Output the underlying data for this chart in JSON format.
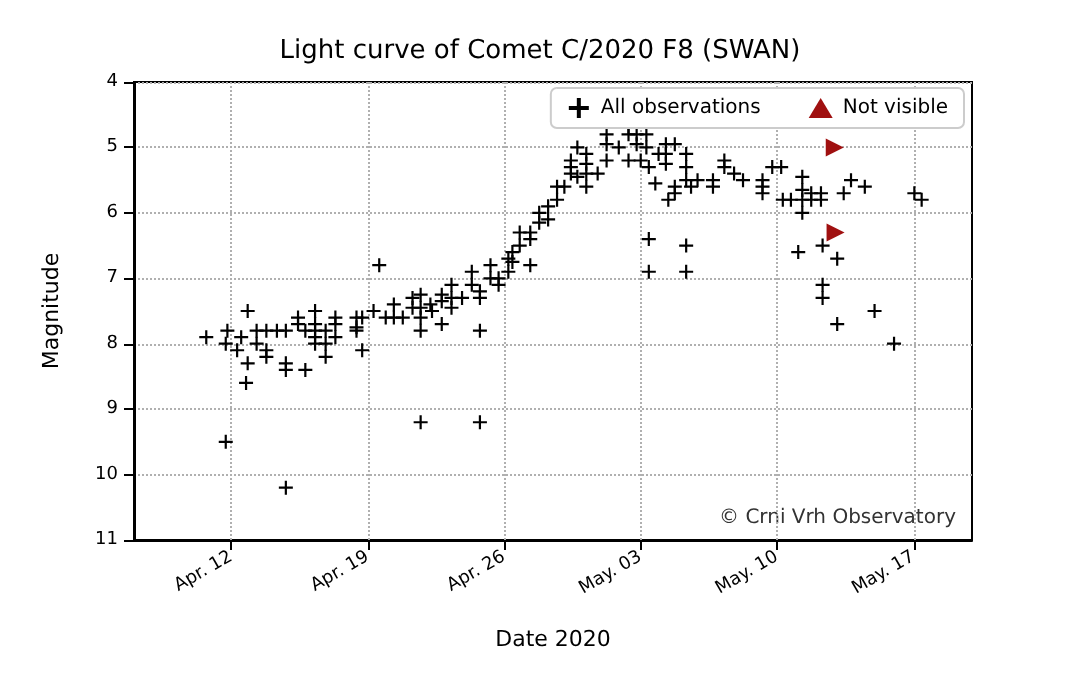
{
  "chart_data": {
    "type": "scatter",
    "title": "Light curve of Comet C/2020 F8 (SWAN)",
    "xlabel": "Date 2020",
    "ylabel": "Magnitude",
    "xlim": [
      "2020-04-07",
      "2020-05-20"
    ],
    "xticks": [
      {
        "value": "2020-04-12",
        "label": "Apr. 12"
      },
      {
        "value": "2020-04-19",
        "label": "Apr. 19"
      },
      {
        "value": "2020-04-26",
        "label": "Apr. 26"
      },
      {
        "value": "2020-05-03",
        "label": "May. 03"
      },
      {
        "value": "2020-05-10",
        "label": "May. 10"
      },
      {
        "value": "2020-05-17",
        "label": "May. 17"
      }
    ],
    "ylim": [
      11,
      4
    ],
    "yticks": [
      4,
      5,
      6,
      7,
      8,
      9,
      10,
      11
    ],
    "grid": true,
    "legend": "top right",
    "annotations": [
      "© Crni Vrh Observatory"
    ],
    "series": [
      {
        "name": "All observations",
        "color": "#000000",
        "marker": "cross",
        "x": [
          "2020-04-10T17:00",
          "2020-04-11T19:00",
          "2020-04-11T17:00",
          "2020-04-11T17:00",
          "2020-04-12T07:00",
          "2020-04-12T12:00",
          "2020-04-12T20:00",
          "2020-04-12T20:00",
          "2020-04-12T18:00",
          "2020-04-13T07:00",
          "2020-04-13T07:00",
          "2020-04-13T19:00",
          "2020-04-13T19:00",
          "2020-04-13T19:00",
          "2020-04-14T08:00",
          "2020-04-14T19:00",
          "2020-04-14T19:00",
          "2020-04-14T19:00",
          "2020-04-14T19:00",
          "2020-04-15T10:00",
          "2020-04-15T10:00",
          "2020-04-15T19:00",
          "2020-04-15T19:00",
          "2020-04-16T07:00",
          "2020-04-16T07:00",
          "2020-04-16T07:00",
          "2020-04-16T07:00",
          "2020-04-16T07:00",
          "2020-04-16T20:00",
          "2020-04-16T20:00",
          "2020-04-16T20:00",
          "2020-04-17T08:00",
          "2020-04-17T08:00",
          "2020-04-17T08:00",
          "2020-04-18T10:00",
          "2020-04-18T10:00",
          "2020-04-18T10:00",
          "2020-04-18T17:00",
          "2020-04-18T17:00",
          "2020-04-19T07:00",
          "2020-04-19T14:00",
          "2020-04-19T22:00",
          "2020-04-20T08:00",
          "2020-04-20T08:00",
          "2020-04-20T19:00",
          "2020-04-21T07:00",
          "2020-04-21T07:00",
          "2020-04-21T17:00",
          "2020-04-21T17:00",
          "2020-04-21T17:00",
          "2020-04-21T17:00",
          "2020-04-21T17:00",
          "2020-04-22T05:00",
          "2020-04-22T07:00",
          "2020-04-22T19:00",
          "2020-04-22T19:00",
          "2020-04-22T19:00",
          "2020-04-23T07:00",
          "2020-04-23T07:00",
          "2020-04-23T07:00",
          "2020-04-23T20:00",
          "2020-04-24T08:00",
          "2020-04-24T08:00",
          "2020-04-24T18:00",
          "2020-04-24T18:00",
          "2020-04-24T18:00",
          "2020-04-24T18:00",
          "2020-04-25T07:00",
          "2020-04-25T07:00",
          "2020-04-25T17:00",
          "2020-04-25T17:00",
          "2020-04-26T05:00",
          "2020-04-26T05:00",
          "2020-04-26T10:00",
          "2020-04-26T10:00",
          "2020-04-26T19:00",
          "2020-04-26T19:00",
          "2020-04-27T08:00",
          "2020-04-27T08:00",
          "2020-04-27T08:00",
          "2020-04-27T19:00",
          "2020-04-27T19:00",
          "2020-04-28T06:00",
          "2020-04-28T06:00",
          "2020-04-28T17:00",
          "2020-04-28T17:00",
          "2020-04-29T02:00",
          "2020-04-29T10:00",
          "2020-04-29T10:00",
          "2020-04-29T10:00",
          "2020-04-29T18:00",
          "2020-04-29T18:00",
          "2020-04-30T05:00",
          "2020-04-30T05:00",
          "2020-04-30T05:00",
          "2020-04-30T05:00",
          "2020-04-30T19:00",
          "2020-05-01T06:00",
          "2020-05-01T06:00",
          "2020-05-01T06:00",
          "2020-05-01T21:00",
          "2020-05-02T09:00",
          "2020-05-02T09:00",
          "2020-05-02T09:00",
          "2020-05-02T19:00",
          "2020-05-02T19:00",
          "2020-05-03T00:00",
          "2020-05-03T07:00",
          "2020-05-03T07:00",
          "2020-05-03T10:00",
          "2020-05-03T10:00",
          "2020-05-03T10:00",
          "2020-05-03T18:00",
          "2020-05-03T22:00",
          "2020-05-04T07:00",
          "2020-05-04T07:00",
          "2020-05-04T07:00",
          "2020-05-04T10:00",
          "2020-05-04T18:00",
          "2020-05-04T18:00",
          "2020-05-04T18:00",
          "2020-05-05T08:00",
          "2020-05-05T08:00",
          "2020-05-05T08:00",
          "2020-05-05T08:00",
          "2020-05-05T08:00",
          "2020-05-05T14:00",
          "2020-05-05T22:00",
          "2020-05-06T17:00",
          "2020-05-06T17:00",
          "2020-05-07T07:00",
          "2020-05-07T07:00",
          "2020-05-07T19:00",
          "2020-05-08T06:00",
          "2020-05-09T06:00",
          "2020-05-09T06:00",
          "2020-05-09T06:00",
          "2020-05-09T18:00",
          "2020-05-10T05:00",
          "2020-05-10T07:00",
          "2020-05-10T17:00",
          "2020-05-11T02:00",
          "2020-05-11T07:00",
          "2020-05-11T07:00",
          "2020-05-11T07:00",
          "2020-05-11T07:00",
          "2020-05-11T18:00",
          "2020-05-11T18:00",
          "2020-05-12T06:00",
          "2020-05-12T06:00",
          "2020-05-12T08:00",
          "2020-05-12T08:00",
          "2020-05-12T08:00",
          "2020-05-13T02:00",
          "2020-05-13T02:00",
          "2020-05-13T10:00",
          "2020-05-13T19:00",
          "2020-05-14T12:00",
          "2020-05-15T00:00",
          "2020-05-16T00:00",
          "2020-05-17T01:00",
          "2020-05-17T10:00"
        ],
        "values": [
          7.9,
          7.8,
          8.0,
          9.5,
          8.1,
          7.9,
          7.5,
          8.3,
          8.6,
          7.8,
          8.0,
          8.1,
          8.2,
          7.8,
          7.8,
          7.8,
          8.3,
          8.4,
          10.2,
          7.6,
          7.7,
          8.4,
          7.8,
          7.5,
          7.7,
          7.8,
          7.9,
          8.0,
          7.8,
          8.0,
          8.2,
          7.6,
          7.7,
          7.9,
          7.6,
          7.75,
          7.8,
          7.6,
          8.1,
          7.5,
          6.8,
          7.6,
          7.4,
          7.6,
          7.6,
          7.3,
          7.45,
          7.25,
          7.45,
          7.6,
          7.8,
          9.2,
          7.4,
          7.5,
          7.25,
          7.35,
          7.7,
          7.1,
          7.3,
          7.45,
          7.3,
          6.9,
          7.1,
          7.2,
          7.3,
          7.8,
          9.2,
          6.8,
          7.0,
          7.0,
          7.1,
          6.7,
          6.9,
          6.6,
          6.75,
          6.5,
          6.3,
          6.3,
          6.4,
          6.8,
          6.0,
          6.15,
          5.9,
          6.1,
          5.8,
          5.6,
          5.6,
          5.2,
          5.3,
          5.4,
          5.0,
          5.45,
          5.1,
          5.25,
          5.4,
          5.6,
          5.4,
          4.8,
          4.95,
          5.2,
          5.0,
          4.7,
          4.8,
          5.2,
          4.8,
          4.95,
          5.2,
          4.8,
          5.0,
          5.3,
          6.4,
          6.9,
          5.55,
          5.1,
          4.95,
          5.1,
          5.25,
          5.8,
          4.95,
          5.6,
          5.7,
          5.1,
          5.3,
          5.5,
          6.5,
          6.9,
          5.6,
          5.5,
          5.5,
          5.6,
          5.2,
          5.3,
          5.4,
          5.5,
          5.5,
          5.6,
          5.7,
          5.3,
          5.3,
          5.8,
          5.8,
          6.6,
          5.45,
          5.65,
          5.8,
          6.0,
          5.7,
          5.8,
          5.7,
          5.8,
          6.5,
          7.1,
          7.3,
          6.7,
          7.7,
          5.7,
          5.5,
          5.6,
          7.5,
          8.0,
          5.7,
          5.8
        ]
      },
      {
        "name": "Not visible",
        "color": "#a01010",
        "marker": "triangle",
        "x": [
          "2020-05-12T23:00",
          "2020-05-13T00:00"
        ],
        "values": [
          5.0,
          6.3
        ]
      }
    ]
  }
}
